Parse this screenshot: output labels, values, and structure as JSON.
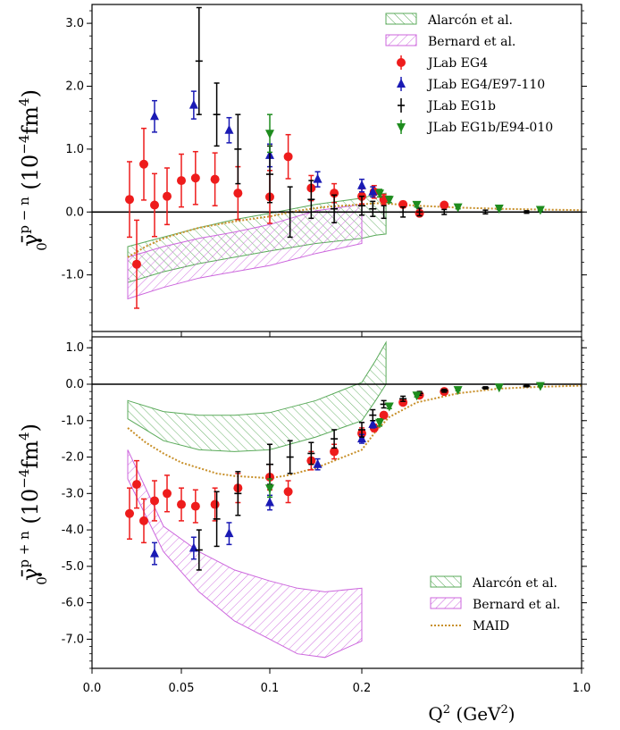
{
  "chart_data": [
    {
      "type": "scatter",
      "panel": "top",
      "ylabel": {
        "base": "γ̄",
        "sub": "0",
        "sup": "p − n",
        "units_open": " (10",
        "units_exp": "−4",
        "units_mid": "fm",
        "units_exp2": "4",
        "units_close": ")"
      },
      "ylim": [
        -1.9,
        3.3
      ],
      "yticks": [
        "-1.0",
        "0.0",
        "1.0",
        "2.0",
        "3.0"
      ],
      "ytick_values": [
        -1,
        0,
        1,
        2,
        3
      ],
      "legend_position": "top-right",
      "legend": [
        "Alarcón et al.",
        "Bernard et al.",
        "JLab EG4",
        "JLab EG4/E97-110",
        "JLab EG1b",
        "JLab EG1b/E94-010"
      ],
      "bands": [
        {
          "name": "Alarcón et al.",
          "color": "#5aaa5a",
          "lower": [
            [
              0.02,
              -1.12
            ],
            [
              0.04,
              -0.95
            ],
            [
              0.06,
              -0.82
            ],
            [
              0.08,
              -0.72
            ],
            [
              0.1,
              -0.62
            ],
            [
              0.15,
              -0.5
            ],
            [
              0.2,
              -0.42
            ],
            [
              0.25,
              -0.37
            ],
            [
              0.288,
              -0.35
            ]
          ],
          "upper": [
            [
              0.02,
              -0.55
            ],
            [
              0.04,
              -0.4
            ],
            [
              0.06,
              -0.25
            ],
            [
              0.08,
              -0.12
            ],
            [
              0.1,
              -0.02
            ],
            [
              0.15,
              0.12
            ],
            [
              0.2,
              0.22
            ],
            [
              0.25,
              0.28
            ],
            [
              0.288,
              0.3
            ]
          ]
        },
        {
          "name": "Bernard et al.",
          "color": "#cc66dd",
          "lower": [
            [
              0.02,
              -1.38
            ],
            [
              0.04,
              -1.2
            ],
            [
              0.06,
              -1.05
            ],
            [
              0.08,
              -0.95
            ],
            [
              0.1,
              -0.85
            ],
            [
              0.15,
              -0.66
            ],
            [
              0.2,
              -0.5
            ]
          ],
          "upper": [
            [
              0.02,
              -0.72
            ],
            [
              0.04,
              -0.55
            ],
            [
              0.06,
              -0.42
            ],
            [
              0.08,
              -0.32
            ],
            [
              0.1,
              -0.2
            ],
            [
              0.15,
              0.02
            ],
            [
              0.2,
              0.12
            ]
          ]
        }
      ],
      "curve": {
        "name": "MAID",
        "color": "#c8902a",
        "points": [
          [
            0.02,
            -0.72
          ],
          [
            0.03,
            -0.55
          ],
          [
            0.04,
            -0.42
          ],
          [
            0.05,
            -0.33
          ],
          [
            0.06,
            -0.25
          ],
          [
            0.08,
            -0.15
          ],
          [
            0.1,
            -0.07
          ],
          [
            0.13,
            0.02
          ],
          [
            0.16,
            0.08
          ],
          [
            0.2,
            0.12
          ],
          [
            0.25,
            0.14
          ],
          [
            0.3,
            0.13
          ],
          [
            0.4,
            0.1
          ],
          [
            0.55,
            0.07
          ],
          [
            0.7,
            0.05
          ],
          [
            0.85,
            0.04
          ],
          [
            1.0,
            0.03
          ]
        ]
      },
      "series": [
        {
          "name": "JLab EG4",
          "marker": "circle",
          "color": "#ee1c1c",
          "points": [
            [
              0.021,
              0.2,
              0.6
            ],
            [
              0.025,
              -0.83,
              0.7
            ],
            [
              0.029,
              0.76,
              0.57
            ],
            [
              0.035,
              0.11,
              0.5
            ],
            [
              0.042,
              0.25,
              0.45
            ],
            [
              0.05,
              0.5,
              0.42
            ],
            [
              0.058,
              0.54,
              0.42
            ],
            [
              0.069,
              0.52,
              0.42
            ],
            [
              0.082,
              0.3,
              0.42
            ],
            [
              0.1,
              0.24,
              0.42
            ],
            [
              0.12,
              0.88,
              0.35
            ],
            [
              0.145,
              0.38,
              0.2
            ],
            [
              0.17,
              0.3,
              0.15
            ],
            [
              0.2,
              0.25,
              0.12
            ],
            [
              0.245,
              0.32,
              0.1
            ],
            [
              0.28,
              0.2,
              0.08
            ],
            [
              0.35,
              0.12,
              0.05
            ],
            [
              0.41,
              -0.02,
              0.04
            ],
            [
              0.5,
              0.11,
              0.03
            ]
          ]
        },
        {
          "name": "JLab EG4/E97-110",
          "marker": "triangle-up",
          "color": "#1a1ab4",
          "points": [
            [
              0.035,
              1.52,
              0.25
            ],
            [
              0.057,
              1.7,
              0.22
            ],
            [
              0.077,
              1.3,
              0.2
            ],
            [
              0.1,
              0.9,
              0.18
            ],
            [
              0.152,
              0.52,
              0.12
            ],
            [
              0.2,
              0.42,
              0.1
            ],
            [
              0.24,
              0.32,
              0.08
            ]
          ]
        },
        {
          "name": "JLab EG1b",
          "marker": "plus",
          "color": "#000000",
          "points": [
            [
              0.06,
              2.4,
              0.85
            ],
            [
              0.07,
              1.55,
              0.5
            ],
            [
              0.082,
              1.0,
              0.55
            ],
            [
              0.1,
              0.6,
              0.45
            ],
            [
              0.122,
              0.0,
              0.4
            ],
            [
              0.145,
              0.2,
              0.3
            ],
            [
              0.17,
              0.05,
              0.22
            ],
            [
              0.2,
              0.1,
              0.15
            ],
            [
              0.24,
              0.05,
              0.12
            ],
            [
              0.28,
              0.0,
              0.1
            ],
            [
              0.35,
              0.0,
              0.08
            ],
            [
              0.41,
              0.0,
              0.06
            ],
            [
              0.5,
              0.0,
              0.04
            ],
            [
              0.65,
              0.0,
              0.03
            ],
            [
              0.8,
              0.0,
              0.02
            ]
          ]
        },
        {
          "name": "JLab EG1b/E94-010",
          "marker": "triangle-down",
          "color": "#1e8c1e",
          "points": [
            [
              0.1,
              1.25,
              0.3
            ],
            [
              0.265,
              0.3,
              0.06
            ],
            [
              0.3,
              0.2,
              0.05
            ],
            [
              0.4,
              0.12,
              0.04
            ],
            [
              0.55,
              0.08,
              0.03
            ],
            [
              0.7,
              0.06,
              0.02
            ],
            [
              0.85,
              0.04,
              0.02
            ]
          ]
        }
      ]
    },
    {
      "type": "scatter",
      "panel": "bottom",
      "ylabel": {
        "base": "γ̄",
        "sub": "0",
        "sup": "p + n",
        "units_open": " (10",
        "units_exp": "−4",
        "units_mid": "fm",
        "units_exp2": "4",
        "units_close": ")"
      },
      "ylim": [
        -7.8,
        1.3
      ],
      "yticks": [
        "-7.0",
        "-6.0",
        "-5.0",
        "-4.0",
        "-3.0",
        "-2.0",
        "-1.0",
        "0.0",
        "1.0"
      ],
      "ytick_values": [
        -7,
        -6,
        -5,
        -4,
        -3,
        -2,
        -1,
        0,
        1
      ],
      "legend_position": "bottom-right",
      "legend": [
        "Alarcón et al.",
        "Bernard et al.",
        "MAID"
      ],
      "xlabel": {
        "base": "Q",
        "sup": "2",
        "units_open": " (GeV",
        "units_sup": "2",
        "units_close": ")"
      },
      "xticks": [
        "0.0",
        "0.05",
        "0.1",
        "0.2",
        "1.0"
      ],
      "xtick_values": [
        0.0,
        0.05,
        0.1,
        0.2,
        1.0
      ],
      "bands": [
        {
          "name": "Alarcón et al.",
          "color": "#5aaa5a",
          "lower": [
            [
              0.02,
              -0.95
            ],
            [
              0.04,
              -1.55
            ],
            [
              0.06,
              -1.8
            ],
            [
              0.08,
              -1.85
            ],
            [
              0.1,
              -1.8
            ],
            [
              0.15,
              -1.45
            ],
            [
              0.2,
              -1.0
            ],
            [
              0.25,
              -0.45
            ],
            [
              0.288,
              0.0
            ]
          ],
          "upper": [
            [
              0.02,
              -0.45
            ],
            [
              0.04,
              -0.75
            ],
            [
              0.06,
              -0.85
            ],
            [
              0.08,
              -0.85
            ],
            [
              0.1,
              -0.78
            ],
            [
              0.15,
              -0.45
            ],
            [
              0.2,
              0.05
            ],
            [
              0.25,
              0.65
            ],
            [
              0.288,
              1.15
            ]
          ]
        },
        {
          "name": "Bernard et al.",
          "color": "#cc66dd",
          "lower": [
            [
              0.02,
              -2.6
            ],
            [
              0.04,
              -4.6
            ],
            [
              0.06,
              -5.7
            ],
            [
              0.08,
              -6.5
            ],
            [
              0.1,
              -7.0
            ],
            [
              0.13,
              -7.4
            ],
            [
              0.16,
              -7.5
            ],
            [
              0.2,
              -7.05
            ]
          ],
          "upper": [
            [
              0.02,
              -1.8
            ],
            [
              0.04,
              -3.9
            ],
            [
              0.06,
              -4.6
            ],
            [
              0.08,
              -5.1
            ],
            [
              0.1,
              -5.4
            ],
            [
              0.13,
              -5.6
            ],
            [
              0.16,
              -5.7
            ],
            [
              0.2,
              -5.6
            ]
          ]
        }
      ],
      "curve": {
        "name": "MAID",
        "color": "#c8902a",
        "points": [
          [
            0.02,
            -1.2
          ],
          [
            0.03,
            -1.6
          ],
          [
            0.04,
            -1.9
          ],
          [
            0.05,
            -2.15
          ],
          [
            0.06,
            -2.3
          ],
          [
            0.07,
            -2.45
          ],
          [
            0.08,
            -2.52
          ],
          [
            0.1,
            -2.58
          ],
          [
            0.12,
            -2.5
          ],
          [
            0.15,
            -2.3
          ],
          [
            0.18,
            -2.0
          ],
          [
            0.2,
            -1.8
          ],
          [
            0.25,
            -1.3
          ],
          [
            0.3,
            -0.9
          ],
          [
            0.4,
            -0.5
          ],
          [
            0.55,
            -0.25
          ],
          [
            0.7,
            -0.12
          ],
          [
            0.85,
            -0.07
          ],
          [
            1.0,
            -0.04
          ]
        ]
      },
      "series": [
        {
          "name": "JLab EG4",
          "marker": "circle",
          "color": "#ee1c1c",
          "points": [
            [
              0.021,
              -3.55,
              0.7
            ],
            [
              0.025,
              -2.75,
              0.65
            ],
            [
              0.029,
              -3.75,
              0.6
            ],
            [
              0.035,
              -3.2,
              0.55
            ],
            [
              0.042,
              -3.0,
              0.5
            ],
            [
              0.05,
              -3.3,
              0.45
            ],
            [
              0.058,
              -3.35,
              0.45
            ],
            [
              0.069,
              -3.3,
              0.45
            ],
            [
              0.082,
              -2.85,
              0.4
            ],
            [
              0.1,
              -2.55,
              0.35
            ],
            [
              0.12,
              -2.95,
              0.3
            ],
            [
              0.145,
              -2.1,
              0.25
            ],
            [
              0.17,
              -1.85,
              0.2
            ],
            [
              0.2,
              -1.35,
              0.15
            ],
            [
              0.245,
              -1.2,
              0.1
            ],
            [
              0.28,
              -0.85,
              0.08
            ],
            [
              0.35,
              -0.5,
              0.05
            ],
            [
              0.41,
              -0.3,
              0.04
            ],
            [
              0.5,
              -0.2,
              0.03
            ]
          ]
        },
        {
          "name": "JLab EG4/E97-110",
          "marker": "triangle-up",
          "color": "#1a1ab4",
          "points": [
            [
              0.035,
              -4.65,
              0.3
            ],
            [
              0.057,
              -4.5,
              0.3
            ],
            [
              0.077,
              -4.1,
              0.3
            ],
            [
              0.1,
              -3.25,
              0.2
            ],
            [
              0.152,
              -2.2,
              0.15
            ],
            [
              0.2,
              -1.5,
              0.12
            ],
            [
              0.24,
              -1.1,
              0.1
            ]
          ]
        },
        {
          "name": "JLab EG1b",
          "marker": "plus",
          "color": "#000000",
          "points": [
            [
              0.06,
              -4.55,
              0.55
            ],
            [
              0.07,
              -3.7,
              0.75
            ],
            [
              0.082,
              -3.0,
              0.6
            ],
            [
              0.1,
              -2.2,
              0.55
            ],
            [
              0.122,
              -2.0,
              0.45
            ],
            [
              0.145,
              -1.9,
              0.3
            ],
            [
              0.17,
              -1.5,
              0.25
            ],
            [
              0.2,
              -1.25,
              0.2
            ],
            [
              0.24,
              -0.85,
              0.15
            ],
            [
              0.28,
              -0.55,
              0.1
            ],
            [
              0.35,
              -0.4,
              0.07
            ],
            [
              0.41,
              -0.25,
              0.05
            ],
            [
              0.5,
              -0.18,
              0.04
            ],
            [
              0.65,
              -0.1,
              0.03
            ],
            [
              0.8,
              -0.05,
              0.02
            ]
          ]
        },
        {
          "name": "JLab EG1b/E94-010",
          "marker": "triangle-down",
          "color": "#1e8c1e",
          "points": [
            [
              0.1,
              -2.85,
              0.25
            ],
            [
              0.265,
              -1.05,
              0.1
            ],
            [
              0.3,
              -0.6,
              0.07
            ],
            [
              0.4,
              -0.3,
              0.05
            ],
            [
              0.55,
              -0.15,
              0.03
            ],
            [
              0.7,
              -0.08,
              0.02
            ],
            [
              0.85,
              -0.04,
              0.02
            ]
          ]
        }
      ]
    }
  ]
}
